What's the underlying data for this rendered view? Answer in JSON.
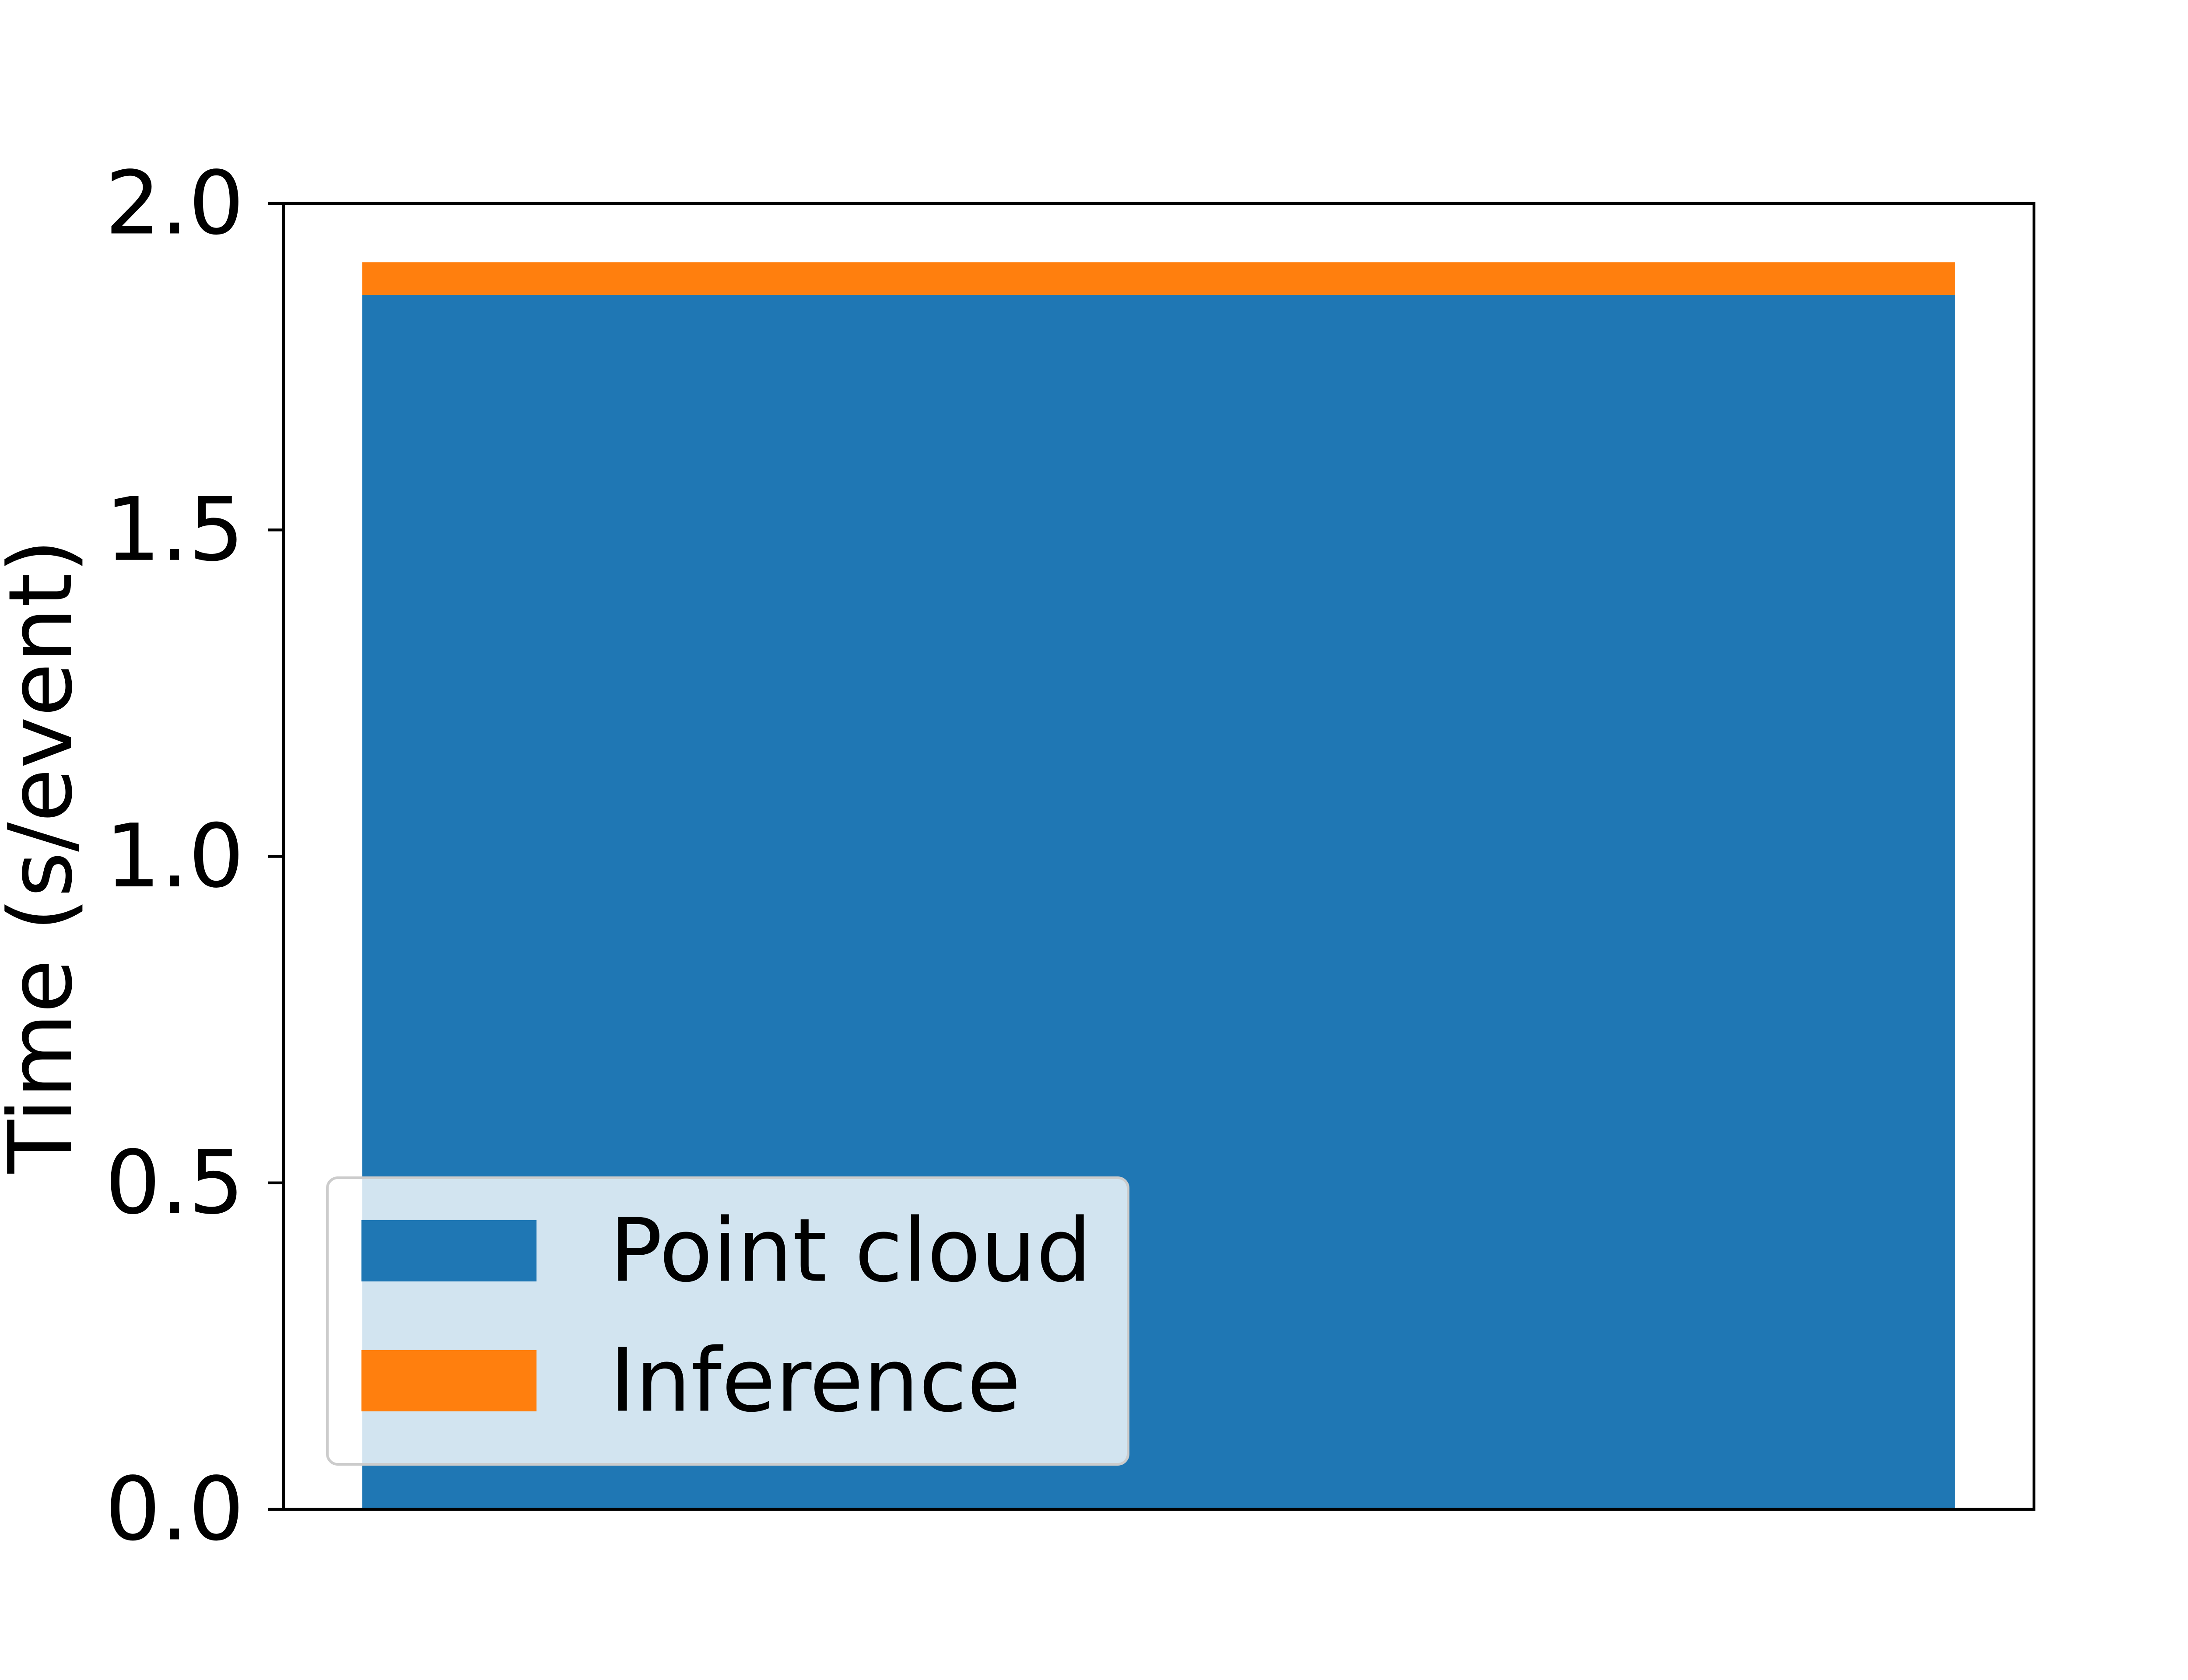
{
  "chart_data": {
    "type": "bar",
    "stacked": true,
    "categories": [
      ""
    ],
    "series": [
      {
        "name": "Point cloud",
        "values": [
          1.86
        ],
        "color": "#1f77b4"
      },
      {
        "name": "Inference",
        "values": [
          0.05
        ],
        "color": "#ff7f0e"
      }
    ],
    "ylabel": "Time (s/event)",
    "xlabel": "",
    "ylim": [
      0,
      2.0
    ],
    "yticks": [
      "0.0",
      "0.5",
      "1.0",
      "1.5",
      "2.0"
    ],
    "grid": false,
    "legend_placement": "lower-left"
  }
}
